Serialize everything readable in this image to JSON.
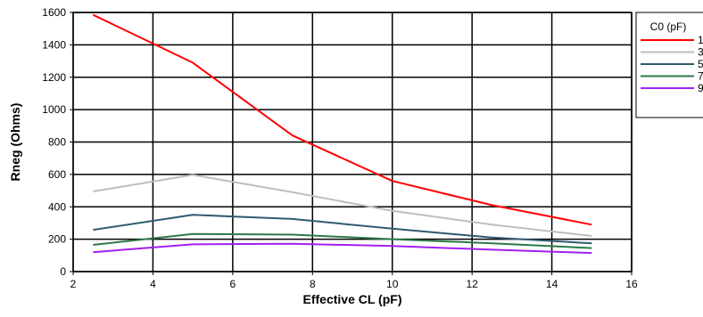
{
  "chart_data": {
    "type": "line",
    "title": "",
    "xlabel": "Effective CL (pF)",
    "ylabel": "Rneg (Ohms)",
    "xlim": [
      2,
      16
    ],
    "ylim": [
      0,
      1600
    ],
    "xticks": [
      2,
      4,
      6,
      8,
      10,
      12,
      14,
      16
    ],
    "yticks": [
      0,
      200,
      400,
      600,
      800,
      1000,
      1200,
      1400,
      1600
    ],
    "grid": true,
    "legend": {
      "title": "C0 (pF)",
      "placement": "right, outside plot"
    },
    "x": [
      2.5,
      5,
      7.5,
      10,
      12.5,
      15
    ],
    "series": [
      {
        "name": "1",
        "color": "#ff0000",
        "values": [
          1585,
          1290,
          840,
          560,
          410,
          290
        ]
      },
      {
        "name": "3",
        "color": "#bebebe",
        "values": [
          495,
          597,
          490,
          375,
          290,
          220
        ]
      },
      {
        "name": "5",
        "color": "#2e5a6e",
        "values": [
          258,
          350,
          325,
          265,
          210,
          175
        ]
      },
      {
        "name": "7",
        "color": "#2b7a48",
        "values": [
          165,
          232,
          228,
          200,
          175,
          145
        ]
      },
      {
        "name": "9",
        "color": "#a020f0",
        "values": [
          120,
          168,
          172,
          158,
          135,
          115
        ]
      }
    ]
  }
}
